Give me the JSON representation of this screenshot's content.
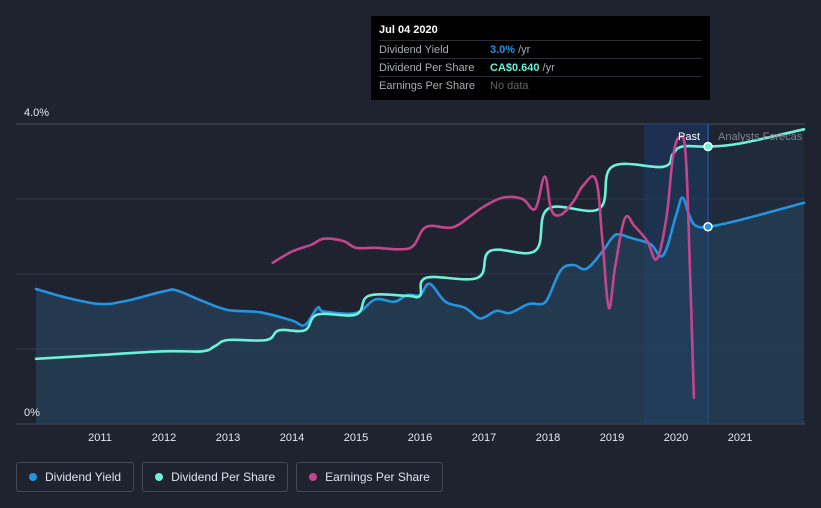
{
  "tooltip": {
    "date": "Jul 04 2020",
    "rows": [
      {
        "label": "Dividend Yield",
        "value": "3.0%",
        "unit": "/yr",
        "color": "#2394df"
      },
      {
        "label": "Dividend Per Share",
        "value": "CA$0.640",
        "unit": "/yr",
        "color": "#6cf2d8"
      },
      {
        "label": "Earnings Per Share",
        "value": "No data",
        "unit": "",
        "color": "#5f636c"
      }
    ]
  },
  "labels": {
    "past": "Past",
    "forecast": "Analysts Forecas"
  },
  "legend": [
    {
      "label": "Dividend Yield",
      "color": "#2394df"
    },
    {
      "label": "Dividend Per Share",
      "color": "#6cf2d8"
    },
    {
      "label": "Earnings Per Share",
      "color": "#c2468d"
    }
  ],
  "chart_data": {
    "type": "line",
    "x_ticks": [
      "2011",
      "2012",
      "2013",
      "2014",
      "2015",
      "2016",
      "2017",
      "2018",
      "2019",
      "2020",
      "2021"
    ],
    "y_ticks": [
      "0%",
      "4.0%"
    ],
    "ylim": [
      0,
      4.0
    ],
    "xlim": [
      2010.0,
      2022.0
    ],
    "past_region": [
      2019.5,
      2020.5
    ],
    "series": [
      {
        "name": "Dividend Yield",
        "color": "#2394df",
        "points": [
          [
            2010.0,
            1.8
          ],
          [
            2010.5,
            1.68
          ],
          [
            2011.0,
            1.6
          ],
          [
            2011.4,
            1.64
          ],
          [
            2012.0,
            1.77
          ],
          [
            2012.2,
            1.78
          ],
          [
            2012.6,
            1.64
          ],
          [
            2013.0,
            1.52
          ],
          [
            2013.5,
            1.49
          ],
          [
            2014.0,
            1.38
          ],
          [
            2014.2,
            1.32
          ],
          [
            2014.4,
            1.55
          ],
          [
            2014.5,
            1.5
          ],
          [
            2015.0,
            1.48
          ],
          [
            2015.3,
            1.66
          ],
          [
            2015.6,
            1.63
          ],
          [
            2015.8,
            1.72
          ],
          [
            2016.0,
            1.72
          ],
          [
            2016.15,
            1.87
          ],
          [
            2016.4,
            1.63
          ],
          [
            2016.7,
            1.55
          ],
          [
            2016.9,
            1.42
          ],
          [
            2017.0,
            1.42
          ],
          [
            2017.2,
            1.51
          ],
          [
            2017.4,
            1.48
          ],
          [
            2017.7,
            1.6
          ],
          [
            2017.9,
            1.6
          ],
          [
            2018.0,
            1.68
          ],
          [
            2018.2,
            2.05
          ],
          [
            2018.4,
            2.12
          ],
          [
            2018.6,
            2.07
          ],
          [
            2018.85,
            2.3
          ],
          [
            2019.0,
            2.48
          ],
          [
            2019.1,
            2.53
          ],
          [
            2019.3,
            2.48
          ],
          [
            2019.6,
            2.4
          ],
          [
            2019.8,
            2.25
          ],
          [
            2020.0,
            2.78
          ],
          [
            2020.1,
            3.02
          ],
          [
            2020.2,
            2.8
          ],
          [
            2020.3,
            2.65
          ],
          [
            2020.5,
            2.63
          ],
          [
            2021.0,
            2.72
          ],
          [
            2022.0,
            2.95
          ]
        ]
      },
      {
        "name": "Dividend Per Share",
        "color": "#6cf2d8",
        "points": [
          [
            2010.0,
            0.87
          ],
          [
            2011.0,
            0.92
          ],
          [
            2012.0,
            0.97
          ],
          [
            2012.6,
            0.97
          ],
          [
            2012.8,
            1.04
          ],
          [
            2013.0,
            1.12
          ],
          [
            2013.6,
            1.12
          ],
          [
            2013.8,
            1.25
          ],
          [
            2014.2,
            1.25
          ],
          [
            2014.4,
            1.46
          ],
          [
            2015.0,
            1.46
          ],
          [
            2015.2,
            1.71
          ],
          [
            2015.8,
            1.71
          ],
          [
            2016.0,
            1.71
          ],
          [
            2016.1,
            1.95
          ],
          [
            2016.9,
            1.95
          ],
          [
            2017.1,
            2.31
          ],
          [
            2017.8,
            2.31
          ],
          [
            2018.0,
            2.87
          ],
          [
            2018.8,
            2.87
          ],
          [
            2019.0,
            3.43
          ],
          [
            2019.8,
            3.43
          ],
          [
            2019.95,
            3.6
          ],
          [
            2020.1,
            3.7
          ],
          [
            2020.5,
            3.7
          ],
          [
            2021.0,
            3.74
          ],
          [
            2022.0,
            3.93
          ]
        ]
      },
      {
        "name": "Earnings Per Share",
        "color": "#c2468d",
        "points": [
          [
            2013.7,
            2.15
          ],
          [
            2014.0,
            2.3
          ],
          [
            2014.3,
            2.39
          ],
          [
            2014.5,
            2.47
          ],
          [
            2014.8,
            2.44
          ],
          [
            2015.0,
            2.35
          ],
          [
            2015.3,
            2.35
          ],
          [
            2015.7,
            2.33
          ],
          [
            2015.9,
            2.38
          ],
          [
            2016.1,
            2.63
          ],
          [
            2016.5,
            2.62
          ],
          [
            2016.8,
            2.78
          ],
          [
            2017.0,
            2.9
          ],
          [
            2017.3,
            3.02
          ],
          [
            2017.6,
            3.0
          ],
          [
            2017.8,
            2.87
          ],
          [
            2017.95,
            3.3
          ],
          [
            2018.05,
            2.86
          ],
          [
            2018.2,
            2.79
          ],
          [
            2018.4,
            2.97
          ],
          [
            2018.55,
            3.18
          ],
          [
            2018.75,
            3.25
          ],
          [
            2018.85,
            2.45
          ],
          [
            2018.95,
            1.55
          ],
          [
            2019.05,
            2.1
          ],
          [
            2019.2,
            2.74
          ],
          [
            2019.35,
            2.64
          ],
          [
            2019.55,
            2.44
          ],
          [
            2019.7,
            2.2
          ],
          [
            2019.85,
            2.75
          ],
          [
            2019.95,
            3.55
          ],
          [
            2020.05,
            3.82
          ],
          [
            2020.15,
            3.6
          ],
          [
            2020.22,
            2.0
          ],
          [
            2020.28,
            0.35
          ]
        ]
      }
    ],
    "markers": [
      {
        "series": "Dividend Per Share",
        "x": 2020.5,
        "y": 3.7
      },
      {
        "series": "Dividend Yield",
        "x": 2020.5,
        "y": 2.63
      }
    ]
  }
}
